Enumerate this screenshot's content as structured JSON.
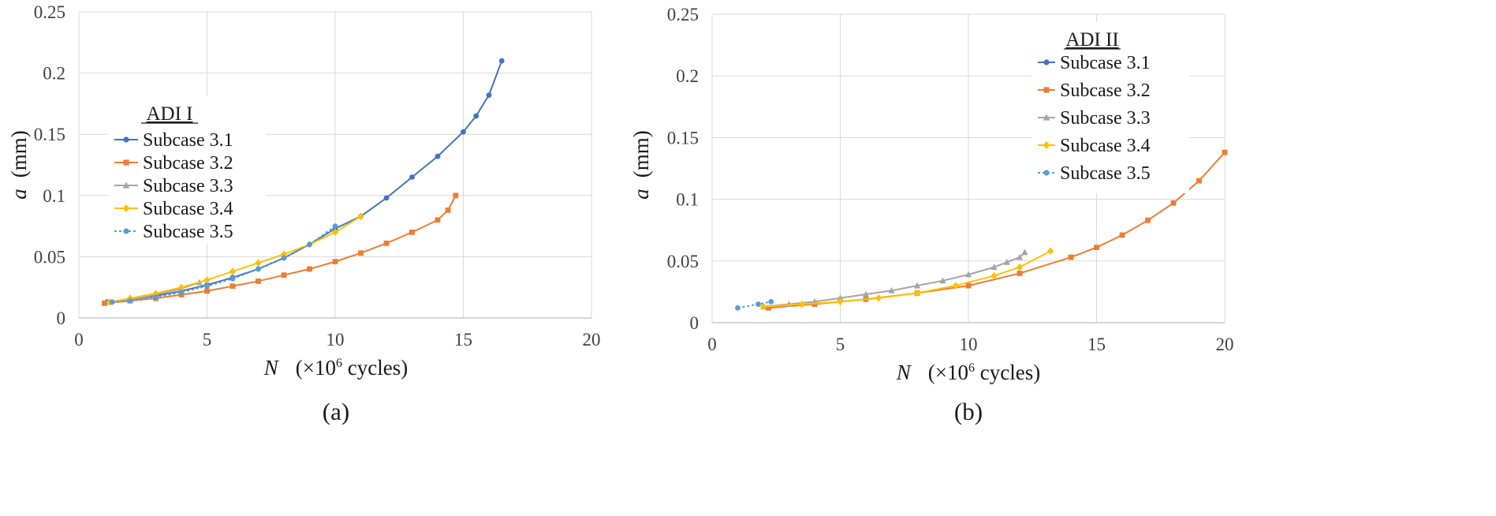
{
  "chart_data": [
    {
      "type": "line",
      "panel_label": "(a)",
      "legend_title": "ADI I",
      "xlabel_var": "N",
      "xlabel_unit": "(×10",
      "xlabel_exp": "6",
      "xlabel_tail": " cycles)",
      "ylabel_var": "a",
      "ylabel_unit": "(mm)",
      "xlim": [
        0,
        20
      ],
      "ylim": [
        0,
        0.25
      ],
      "xticks": [
        "0",
        "5",
        "10",
        "15",
        "20"
      ],
      "yticks": [
        "0",
        "0.05",
        "0.1",
        "0.15",
        "0.2",
        "0.25"
      ],
      "grid": true,
      "legend_position": "center-left",
      "series": [
        {
          "name": "Subcase 3.1",
          "color": "#4472C4",
          "marker": "circle",
          "dash": false,
          "x": [
            1.1,
            2,
            3,
            4,
            5,
            6,
            7,
            8,
            9,
            10,
            11,
            12,
            13,
            14,
            15,
            15.5,
            16,
            16.5
          ],
          "y": [
            0.013,
            0.015,
            0.018,
            0.022,
            0.027,
            0.033,
            0.04,
            0.049,
            0.06,
            0.073,
            0.083,
            0.098,
            0.115,
            0.132,
            0.152,
            0.165,
            0.182,
            0.21
          ]
        },
        {
          "name": "Subcase 3.2",
          "color": "#ED7D31",
          "marker": "square",
          "dash": false,
          "x": [
            1,
            2,
            3,
            4,
            5,
            6,
            7,
            8,
            9,
            10,
            11,
            12,
            13,
            14,
            14.4,
            14.7
          ],
          "y": [
            0.012,
            0.014,
            0.016,
            0.019,
            0.022,
            0.026,
            0.03,
            0.035,
            0.04,
            0.046,
            0.053,
            0.061,
            0.07,
            0.08,
            0.088,
            0.1
          ]
        },
        {
          "name": "Subcase 3.3",
          "color": "#A5A5A5",
          "marker": "triangle",
          "dash": false,
          "x": [
            1.2,
            2,
            3,
            4,
            4.7
          ],
          "y": [
            0.013,
            0.015,
            0.019,
            0.024,
            0.029
          ]
        },
        {
          "name": "Subcase 3.4",
          "color": "#FFC000",
          "marker": "diamond",
          "dash": false,
          "x": [
            1.2,
            2,
            3,
            4,
            5,
            6,
            7,
            8,
            9,
            10,
            11
          ],
          "y": [
            0.013,
            0.016,
            0.02,
            0.025,
            0.031,
            0.038,
            0.045,
            0.052,
            0.06,
            0.07,
            0.083
          ]
        },
        {
          "name": "Subcase 3.5",
          "color": "#5B9BD5",
          "marker": "circle",
          "dash": true,
          "x": [
            1.3,
            2,
            3,
            4,
            5,
            6,
            7,
            8,
            9,
            10
          ],
          "y": [
            0.013,
            0.014,
            0.017,
            0.021,
            0.026,
            0.032,
            0.04,
            0.049,
            0.06,
            0.075
          ]
        }
      ]
    },
    {
      "type": "line",
      "panel_label": "(b)",
      "legend_title": "ADI II",
      "xlabel_var": "N",
      "xlabel_unit": "(×10",
      "xlabel_exp": "6",
      "xlabel_tail": " cycles)",
      "ylabel_var": "a",
      "ylabel_unit": "(mm)",
      "xlim": [
        0,
        20
      ],
      "ylim": [
        0,
        0.25
      ],
      "xticks": [
        "0",
        "5",
        "10",
        "15",
        "20"
      ],
      "yticks": [
        "0",
        "0.05",
        "0.1",
        "0.15",
        "0.2",
        "0.25"
      ],
      "grid": true,
      "legend_position": "top-right",
      "series": [
        {
          "name": "Subcase 3.1",
          "color": "#4472C4",
          "marker": "circle",
          "dash": false,
          "x": [],
          "y": []
        },
        {
          "name": "Subcase 3.2",
          "color": "#ED7D31",
          "marker": "square",
          "dash": false,
          "x": [
            2.2,
            4,
            6,
            8,
            10,
            12,
            14,
            15,
            16,
            17,
            18,
            19,
            20
          ],
          "y": [
            0.012,
            0.015,
            0.019,
            0.024,
            0.03,
            0.04,
            0.053,
            0.061,
            0.071,
            0.083,
            0.097,
            0.115,
            0.138
          ]
        },
        {
          "name": "Subcase 3.3",
          "color": "#A5A5A5",
          "marker": "triangle",
          "dash": false,
          "x": [
            2,
            3,
            4,
            5,
            6,
            7,
            8,
            9,
            10,
            11,
            11.5,
            12,
            12.2
          ],
          "y": [
            0.013,
            0.015,
            0.017,
            0.02,
            0.023,
            0.026,
            0.03,
            0.034,
            0.039,
            0.045,
            0.049,
            0.053,
            0.057
          ]
        },
        {
          "name": "Subcase 3.4",
          "color": "#FFC000",
          "marker": "diamond",
          "dash": false,
          "x": [
            2,
            3.5,
            5,
            6.5,
            8,
            9.5,
            11,
            12,
            13.2
          ],
          "y": [
            0.013,
            0.015,
            0.017,
            0.02,
            0.024,
            0.03,
            0.038,
            0.045,
            0.058
          ]
        },
        {
          "name": "Subcase 3.5",
          "color": "#5B9BD5",
          "marker": "circle",
          "dash": true,
          "x": [
            1,
            1.8,
            2.3
          ],
          "y": [
            0.012,
            0.015,
            0.017
          ]
        }
      ]
    }
  ]
}
